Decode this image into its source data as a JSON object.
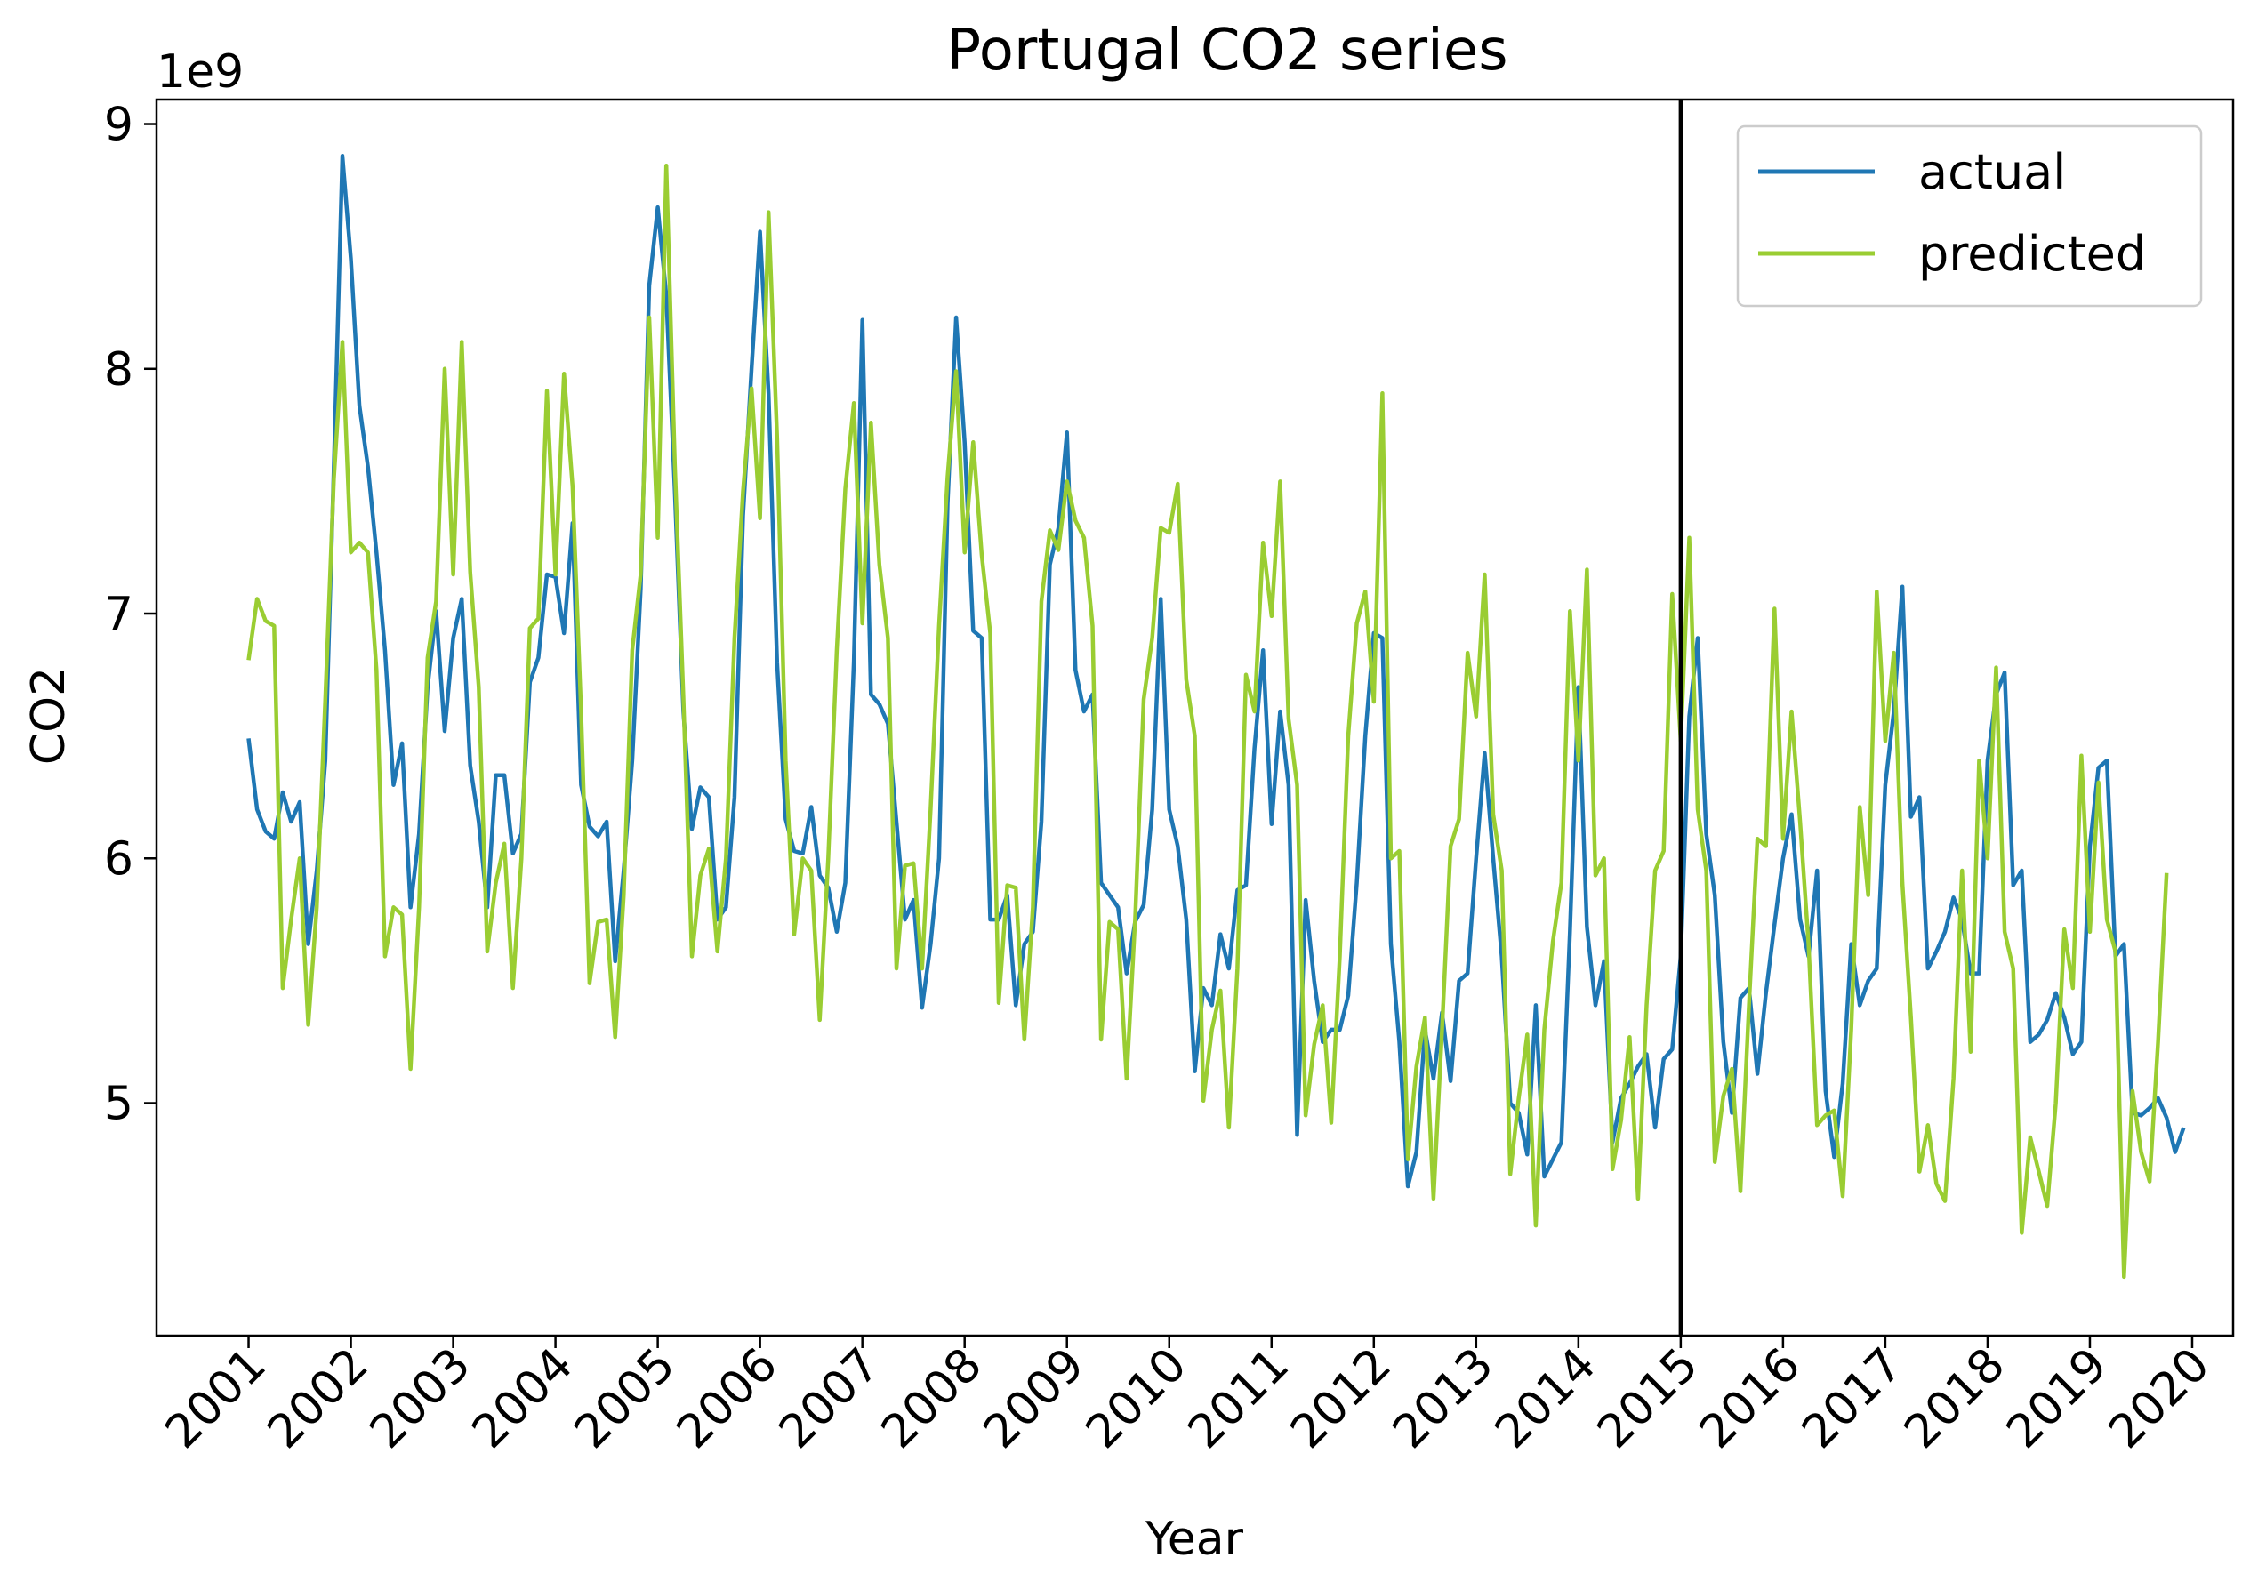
{
  "chart_data": {
    "type": "line",
    "title": "Portugal  CO2 series",
    "xlabel": "Year",
    "ylabel": "CO2",
    "y_multiplier_label": "1e9",
    "xlim": [
      2000.1,
      2020.4
    ],
    "ylim": [
      4.05,
      9.1
    ],
    "x_ticks": [
      2001,
      2002,
      2003,
      2004,
      2005,
      2006,
      2007,
      2008,
      2009,
      2010,
      2011,
      2012,
      2013,
      2014,
      2015,
      2016,
      2017,
      2018,
      2019,
      2020
    ],
    "y_ticks": [
      5,
      6,
      7,
      8,
      9
    ],
    "vertical_line_x": 2015,
    "legend_position": "top-right",
    "colors": {
      "actual": "#1f77b4",
      "predicted": "#9acd32",
      "divider": "#000000"
    },
    "x_start_year": 2001,
    "step": "monthly",
    "series": [
      {
        "name": "actual",
        "color": "#1f77b4",
        "values": [
          6.49,
          6.2,
          6.11,
          6.08,
          6.27,
          6.15,
          6.23,
          5.65,
          5.95,
          6.4,
          7.6,
          8.87,
          8.45,
          7.85,
          7.6,
          7.25,
          6.85,
          6.3,
          6.47,
          5.8,
          6.1,
          6.7,
          7.01,
          6.52,
          6.9,
          7.06,
          6.38,
          6.15,
          5.8,
          6.34,
          6.34,
          6.02,
          6.1,
          6.72,
          6.82,
          7.16,
          7.15,
          6.92,
          7.37,
          6.3,
          6.13,
          6.09,
          6.15,
          5.58,
          5.95,
          6.4,
          7.1,
          8.34,
          8.66,
          8.3,
          7.5,
          6.6,
          6.12,
          6.29,
          6.25,
          5.75,
          5.8,
          6.25,
          7.4,
          8.0,
          8.56,
          7.9,
          6.8,
          6.16,
          6.03,
          6.02,
          6.21,
          5.93,
          5.88,
          5.7,
          5.9,
          6.8,
          8.2,
          6.67,
          6.63,
          6.55,
          6.15,
          5.75,
          5.83,
          5.39,
          5.65,
          6.0,
          7.45,
          8.21,
          7.7,
          6.93,
          6.9,
          5.75,
          5.75,
          5.85,
          5.4,
          5.65,
          5.7,
          6.15,
          7.2,
          7.35,
          7.74,
          6.77,
          6.6,
          6.67,
          5.9,
          5.85,
          5.8,
          5.53,
          5.74,
          5.81,
          6.2,
          7.06,
          6.2,
          6.05,
          5.75,
          5.13,
          5.47,
          5.4,
          5.69,
          5.55,
          5.87,
          5.89,
          6.45,
          6.85,
          6.14,
          6.6,
          6.3,
          4.87,
          5.83,
          5.5,
          5.25,
          5.3,
          5.3,
          5.44,
          5.9,
          6.5,
          6.92,
          6.9,
          5.65,
          5.25,
          4.66,
          4.8,
          5.3,
          5.1,
          5.37,
          5.09,
          5.5,
          5.53,
          6.0,
          6.43,
          6.0,
          5.6,
          5.0,
          4.96,
          4.79,
          5.4,
          4.7,
          4.77,
          4.84,
          5.7,
          6.7,
          5.72,
          5.4,
          5.58,
          4.84,
          5.02,
          5.08,
          5.15,
          5.2,
          4.9,
          5.18,
          5.22,
          5.6,
          6.58,
          6.9,
          6.1,
          5.85,
          5.25,
          4.96,
          5.43,
          5.47,
          5.12,
          5.45,
          5.73,
          6.0,
          6.18,
          5.75,
          5.6,
          5.95,
          5.05,
          4.78,
          5.08,
          5.65,
          5.4,
          5.5,
          5.55,
          6.3,
          6.6,
          7.11,
          6.17,
          6.25,
          5.55,
          5.62,
          5.7,
          5.84,
          5.75,
          5.53,
          5.53,
          6.4,
          6.67,
          6.76,
          5.89,
          5.95,
          5.25,
          5.28,
          5.34,
          5.45,
          5.35,
          5.2,
          5.25,
          6.05,
          6.37,
          6.4,
          5.6,
          5.65,
          4.96,
          4.95,
          4.98,
          5.02,
          4.94,
          4.8,
          4.9
        ]
      },
      {
        "name": "predicted",
        "color": "#9acd32",
        "values": [
          6.81,
          7.06,
          6.97,
          6.95,
          5.47,
          5.75,
          6.0,
          5.32,
          5.8,
          6.65,
          7.55,
          8.11,
          7.25,
          7.29,
          7.25,
          6.77,
          5.6,
          5.8,
          5.77,
          5.14,
          5.8,
          6.82,
          7.05,
          8.0,
          7.16,
          8.11,
          7.17,
          6.7,
          5.62,
          5.9,
          6.06,
          5.47,
          6.0,
          6.94,
          6.98,
          7.91,
          7.16,
          7.98,
          7.52,
          6.6,
          5.49,
          5.74,
          5.75,
          5.27,
          5.85,
          6.85,
          7.16,
          8.21,
          7.31,
          8.83,
          7.61,
          6.66,
          5.6,
          5.93,
          6.04,
          5.62,
          6.0,
          6.9,
          7.5,
          7.92,
          7.39,
          8.64,
          7.72,
          6.4,
          5.69,
          6.0,
          5.95,
          5.34,
          6.0,
          6.85,
          7.51,
          7.86,
          6.96,
          7.78,
          7.2,
          6.9,
          5.55,
          5.97,
          5.98,
          5.55,
          6.2,
          6.95,
          7.56,
          7.99,
          7.25,
          7.7,
          7.24,
          6.92,
          5.41,
          5.89,
          5.88,
          5.26,
          5.8,
          7.05,
          7.34,
          7.26,
          7.54,
          7.38,
          7.31,
          6.95,
          5.26,
          5.74,
          5.71,
          5.1,
          5.75,
          6.65,
          6.9,
          7.35,
          7.33,
          7.53,
          6.73,
          6.5,
          5.01,
          5.3,
          5.46,
          4.9,
          5.55,
          6.75,
          6.6,
          7.29,
          6.99,
          7.54,
          6.57,
          6.3,
          4.95,
          5.24,
          5.4,
          4.92,
          5.6,
          6.5,
          6.96,
          7.09,
          6.64,
          7.9,
          6.0,
          6.03,
          4.77,
          5.15,
          5.35,
          4.61,
          5.3,
          6.05,
          6.16,
          6.84,
          6.58,
          7.16,
          6.18,
          5.95,
          4.71,
          5.02,
          5.28,
          4.5,
          5.3,
          5.66,
          5.9,
          7.01,
          6.4,
          7.18,
          5.93,
          6.0,
          4.73,
          4.93,
          5.27,
          4.61,
          5.4,
          5.95,
          6.03,
          7.08,
          6.48,
          7.31,
          6.2,
          5.95,
          4.76,
          5.03,
          5.14,
          4.64,
          5.4,
          6.08,
          6.05,
          7.02,
          6.08,
          6.6,
          6.15,
          5.65,
          4.91,
          4.95,
          4.97,
          4.62,
          5.3,
          6.21,
          5.85,
          7.09,
          6.48,
          6.84,
          5.9,
          5.35,
          4.72,
          4.91,
          4.67,
          4.6,
          5.1,
          5.95,
          5.21,
          6.4,
          6.0,
          6.78,
          5.7,
          5.55,
          4.47,
          4.86,
          4.72,
          4.58,
          5.0,
          5.71,
          5.47,
          6.42,
          5.7,
          6.31,
          5.75,
          5.62,
          4.29,
          5.05,
          4.8,
          4.68,
          5.25,
          5.94
        ]
      }
    ]
  }
}
